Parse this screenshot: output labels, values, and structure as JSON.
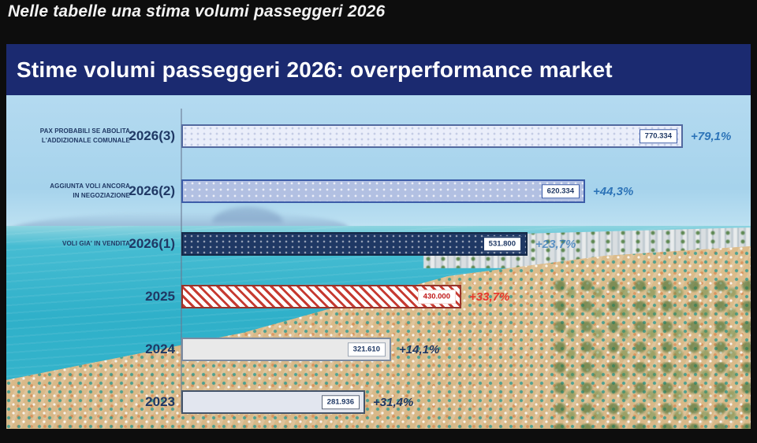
{
  "page": {
    "caption": "Nelle tabelle una stima volumi passeggeri 2026",
    "background_color": "#0d0d0d"
  },
  "slide": {
    "title": "Stime volumi passeggeri 2026: overperformance market",
    "header_bg_color": "#1b2a70",
    "title_color": "#ffffff"
  },
  "colors": {
    "navy_text": "#1f3864",
    "pct_blue": "#2d74b8",
    "pct_red": "#e8372c",
    "bar_2025_hatch_red": "#c63a31",
    "bar_2026_1_navy": "#1f3864",
    "sea_turquoise": "#2fb0c9",
    "sand": "#dcbd8c"
  },
  "rows": [
    {
      "note": "PAX PROBABILI SE ABOLITA\nL'ADDIZIONALE COMUNALE",
      "year": "2026(3)",
      "value": 770334,
      "value_label": "770.334",
      "pct": "+79,1%"
    },
    {
      "note": "AGGIUNTA VOLI ANCORA\nIN NEGOZIAZIONE",
      "year": "2026(2)",
      "value": 620334,
      "value_label": "620.334",
      "pct": "+44,3%"
    },
    {
      "note": "VOLI GIA' IN VENDITA",
      "year": "2026(1)",
      "value": 531800,
      "value_label": "531.800",
      "pct": "+23,7%"
    },
    {
      "note": "",
      "year": "2025",
      "value": 430000,
      "value_label": "430.000",
      "pct": "+33,7%"
    },
    {
      "note": "",
      "year": "2024",
      "value": 321610,
      "value_label": "321.610",
      "pct": "+14,1%"
    },
    {
      "note": "",
      "year": "2023",
      "value": 281936,
      "value_label": "281.936",
      "pct": "+31,4%"
    }
  ],
  "chart_data": {
    "type": "bar",
    "orientation": "horizontal",
    "title": "Stime volumi passeggeri 2026: overperformance market",
    "categories": [
      "2026(3)",
      "2026(2)",
      "2026(1)",
      "2025",
      "2024",
      "2023"
    ],
    "values": [
      770334,
      620334,
      531800,
      430000,
      321610,
      281936
    ],
    "data_labels": [
      "770.334",
      "620.334",
      "531.800",
      "430.000",
      "321.610",
      "281.936"
    ],
    "pct_change_labels": [
      "+79,1%",
      "+44,3%",
      "+23,7%",
      "+33,7%",
      "+14,1%",
      "+31,4%"
    ],
    "category_annotations": [
      "PAX PROBABILI SE ABOLITA L'ADDIZIONALE COMUNALE",
      "AGGIUNTA VOLI ANCORA IN NEGOZIAZIONE",
      "VOLI GIA' IN VENDITA",
      "",
      "",
      ""
    ],
    "xlim": [
      0,
      790000
    ],
    "grid": false,
    "legend": "none",
    "background": "aerial beach photo (sea, shoreline umbrellas, city skyline)"
  }
}
